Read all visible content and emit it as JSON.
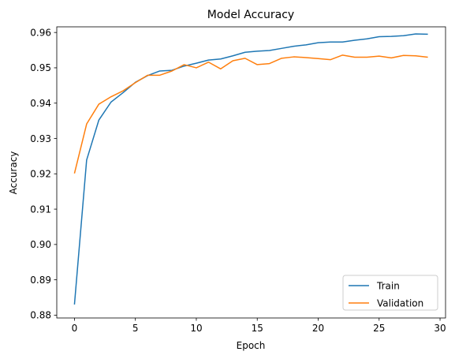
{
  "chart_data": {
    "type": "line",
    "title": "Model Accuracy",
    "xlabel": "Epoch",
    "ylabel": "Accuracy",
    "xlim": [
      -1.45,
      30.45
    ],
    "ylim": [
      0.8792,
      0.9616
    ],
    "xticks": [
      0,
      5,
      10,
      15,
      20,
      25,
      30
    ],
    "yticks": [
      0.88,
      0.89,
      0.9,
      0.91,
      0.92,
      0.93,
      0.94,
      0.95,
      0.96
    ],
    "ytick_labels": [
      "0.88",
      "0.89",
      "0.90",
      "0.91",
      "0.92",
      "0.93",
      "0.94",
      "0.95",
      "0.96"
    ],
    "grid": false,
    "legend_position": "lower-right",
    "x": [
      0,
      1,
      2,
      3,
      4,
      5,
      6,
      7,
      8,
      9,
      10,
      11,
      12,
      13,
      14,
      15,
      16,
      17,
      18,
      19,
      20,
      21,
      22,
      23,
      24,
      25,
      26,
      27,
      28,
      29
    ],
    "series": [
      {
        "name": "Train",
        "color": "#1f77b4",
        "values": [
          0.883,
          0.9239,
          0.9352,
          0.9403,
          0.943,
          0.9459,
          0.9478,
          0.9491,
          0.9493,
          0.9505,
          0.9513,
          0.9522,
          0.9525,
          0.9534,
          0.9544,
          0.9547,
          0.9549,
          0.9555,
          0.9561,
          0.9565,
          0.9571,
          0.9573,
          0.9573,
          0.9578,
          0.9582,
          0.9588,
          0.9589,
          0.9591,
          0.9596,
          0.9595
        ]
      },
      {
        "name": "Validation",
        "color": "#ff7f0e",
        "values": [
          0.9201,
          0.9341,
          0.9397,
          0.9418,
          0.9435,
          0.9458,
          0.9479,
          0.9479,
          0.9491,
          0.9509,
          0.95,
          0.9516,
          0.9497,
          0.952,
          0.9527,
          0.9509,
          0.9512,
          0.9527,
          0.9531,
          0.9529,
          0.9526,
          0.9523,
          0.9536,
          0.953,
          0.953,
          0.9533,
          0.9528,
          0.9535,
          0.9534,
          0.953
        ]
      }
    ]
  }
}
